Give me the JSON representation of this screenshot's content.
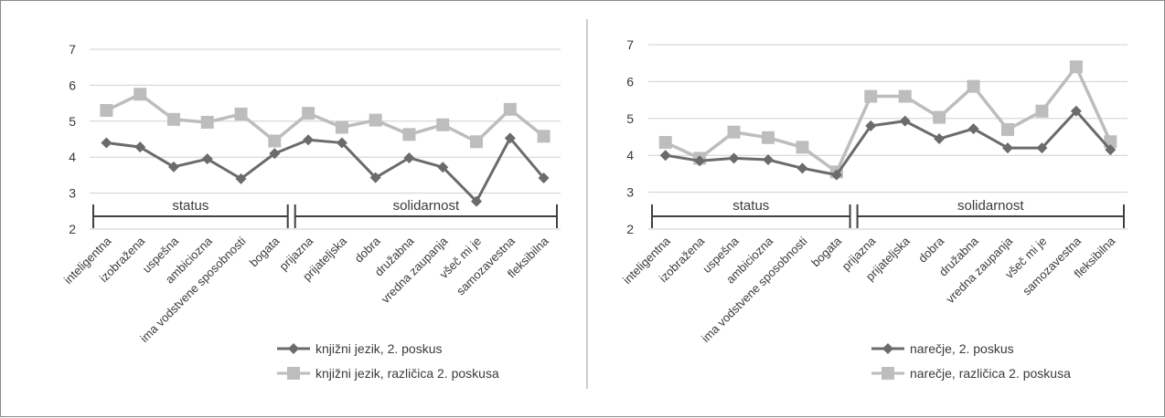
{
  "chart_data": [
    {
      "type": "line",
      "title": "",
      "xlabel": "",
      "ylabel": "",
      "ylim": [
        2,
        7
      ],
      "yticks": [
        2,
        3,
        4,
        5,
        6,
        7
      ],
      "grid": true,
      "legend_position": "bottom",
      "categories": [
        "inteligentna",
        "izobražena",
        "uspešna",
        "ambiciozna",
        "ima vodstvene sposobnosti",
        "bogata",
        "prijazna",
        "prijateljska",
        "dobra",
        "družabna",
        "vredna zaupanja",
        "všeč mi je",
        "samozavestna",
        "fleksibilna"
      ],
      "groups": [
        {
          "label": "status",
          "from": 0,
          "to": 5
        },
        {
          "label": "solidarnost",
          "from": 6,
          "to": 13
        }
      ],
      "series": [
        {
          "name": "knjižni jezik, 2. poskus",
          "marker": "diamond",
          "color": "#6b6b6b",
          "values": [
            4.4,
            4.28,
            3.73,
            3.95,
            3.4,
            4.1,
            4.48,
            4.4,
            3.43,
            3.98,
            3.72,
            2.77,
            4.53,
            3.42
          ]
        },
        {
          "name": "knjižni jezik, različica 2. poskusa",
          "marker": "square",
          "color": "#bdbdbd",
          "values": [
            5.3,
            5.75,
            5.05,
            4.97,
            5.2,
            4.45,
            5.22,
            4.83,
            5.03,
            4.63,
            4.9,
            4.43,
            5.33,
            4.58
          ]
        }
      ]
    },
    {
      "type": "line",
      "title": "",
      "xlabel": "",
      "ylabel": "",
      "ylim": [
        2,
        7
      ],
      "yticks": [
        2,
        3,
        4,
        5,
        6,
        7
      ],
      "grid": true,
      "legend_position": "bottom",
      "categories": [
        "inteligentna",
        "izobražena",
        "uspešna",
        "ambiciozna",
        "ima vodstvene sposobnosti",
        "bogata",
        "prijazna",
        "prijateljska",
        "dobra",
        "družabna",
        "vredna zaupanja",
        "všeč mi je",
        "samozavestna",
        "fleksibilna"
      ],
      "groups": [
        {
          "label": "status",
          "from": 0,
          "to": 5
        },
        {
          "label": "solidarnost",
          "from": 6,
          "to": 13
        }
      ],
      "series": [
        {
          "name": "narečje, 2. poskus",
          "marker": "diamond",
          "color": "#6b6b6b",
          "values": [
            4.0,
            3.85,
            3.92,
            3.88,
            3.65,
            3.47,
            4.8,
            4.93,
            4.45,
            4.72,
            4.2,
            4.2,
            5.2,
            4.15
          ]
        },
        {
          "name": "narečje, različica 2. poskusa",
          "marker": "square",
          "color": "#bdbdbd",
          "values": [
            4.35,
            3.92,
            4.63,
            4.48,
            4.22,
            3.55,
            5.6,
            5.6,
            5.03,
            5.87,
            4.7,
            5.2,
            6.4,
            4.37
          ]
        }
      ]
    }
  ]
}
